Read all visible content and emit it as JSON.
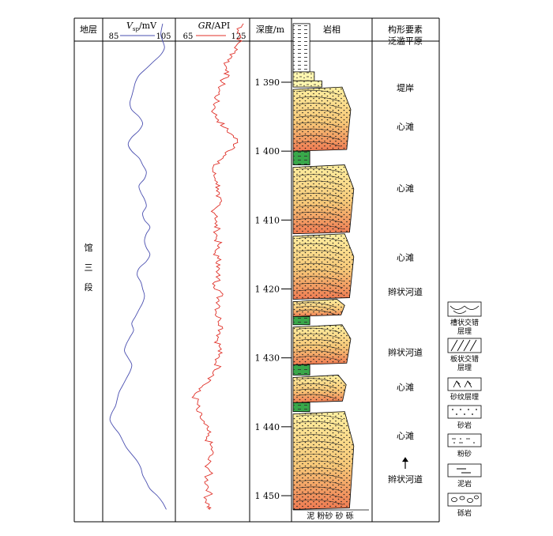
{
  "headers": {
    "stratum": "地层",
    "sp_unit": "/mV",
    "gr_unit": "/API",
    "depth": "深度/m",
    "lithofacies": "岩相",
    "architecture": "构形要素"
  },
  "stratum_name": [
    "馆",
    "三",
    "段"
  ],
  "grain_scale": "泥 粉砂 砂 砾",
  "chart_data": [
    {
      "type": "line",
      "name": "V_sp",
      "unit": "mV",
      "xlim": [
        85,
        105
      ],
      "tick_labels": [
        "85",
        "105"
      ],
      "color": "#4a4fb0",
      "depth": [
        1381.5,
        1383,
        1384,
        1385,
        1386,
        1387,
        1388,
        1389,
        1390,
        1391,
        1392,
        1393,
        1394,
        1395,
        1396,
        1397,
        1398,
        1399,
        1400,
        1401,
        1402,
        1403,
        1404,
        1405,
        1406,
        1407,
        1408,
        1409,
        1410,
        1411,
        1412,
        1413,
        1414,
        1415,
        1416,
        1417,
        1418,
        1419,
        1420,
        1421,
        1422,
        1423,
        1424,
        1425,
        1426,
        1427,
        1428,
        1429,
        1430,
        1431,
        1432,
        1433,
        1434,
        1435,
        1436,
        1437,
        1438,
        1439,
        1440,
        1441,
        1442,
        1443,
        1444,
        1445,
        1446,
        1447,
        1448,
        1449,
        1450,
        1451,
        1452
      ],
      "values": [
        101.5,
        101,
        101.5,
        102,
        101,
        99,
        97,
        95,
        94,
        93.5,
        93,
        92.5,
        93,
        95,
        96,
        95,
        93,
        92,
        93,
        95,
        96,
        97,
        96.5,
        95,
        95.5,
        96.5,
        97,
        96,
        96.5,
        98,
        97,
        96.5,
        97,
        98,
        97,
        95,
        94.5,
        95.5,
        96,
        96.5,
        96,
        95,
        94,
        93,
        93.5,
        92.5,
        91.5,
        91,
        92,
        93,
        92.5,
        91.5,
        90.5,
        89.5,
        89,
        88.5,
        87.5,
        87,
        88,
        89.5,
        90.5,
        91.5,
        93,
        94.5,
        95.5,
        96,
        97,
        98,
        100,
        101.5,
        102.5
      ]
    },
    {
      "type": "line",
      "name": "GR",
      "unit": "API",
      "xlim": [
        65,
        125
      ],
      "tick_labels": [
        "65",
        "125"
      ],
      "color": "#e0322a",
      "depth": [
        1381.5,
        1382.5,
        1383.5,
        1384.5,
        1385.5,
        1386.5,
        1387.5,
        1388.5,
        1389.5,
        1390.5,
        1391.5,
        1392.5,
        1393.5,
        1394.5,
        1395.5,
        1396.5,
        1397.5,
        1398.5,
        1399.5,
        1400.5,
        1401.5,
        1402.5,
        1403.5,
        1404.5,
        1405.5,
        1406.5,
        1407.5,
        1408.5,
        1409.5,
        1410.5,
        1411.5,
        1412.5,
        1413.5,
        1414.5,
        1415.5,
        1416.5,
        1417.5,
        1418.5,
        1419.5,
        1420.5,
        1421.5,
        1422.5,
        1423.5,
        1424.5,
        1425.5,
        1426.5,
        1427.5,
        1428.5,
        1429.5,
        1430.5,
        1431.5,
        1432.5,
        1433.5,
        1434.5,
        1435.5,
        1436.5,
        1437.5,
        1438.5,
        1439.5,
        1440.5,
        1441.5,
        1442.5,
        1443.5,
        1444.5,
        1445.5,
        1446.5,
        1447.5,
        1448.5,
        1449.5,
        1450.5,
        1451.5,
        1452
      ],
      "values": [
        120,
        116,
        118,
        115,
        113,
        110,
        105,
        108,
        104,
        102,
        100,
        98,
        97,
        96,
        100,
        104,
        110,
        115,
        113,
        106,
        99,
        95,
        96,
        99,
        100,
        98,
        101,
        96,
        99,
        97,
        99,
        98,
        100,
        97,
        99,
        101,
        98,
        100,
        97,
        102,
        100,
        101,
        98,
        101,
        103,
        101,
        99,
        101,
        100,
        98,
        100,
        96,
        92,
        84,
        80,
        83,
        82,
        85,
        88,
        91,
        90,
        93,
        95,
        92,
        91,
        93,
        90,
        91,
        93,
        90,
        92,
        93
      ]
    }
  ],
  "depth_axis": {
    "range": [
      1381.5,
      1452
    ],
    "tick_labels": [
      "1 390",
      "1 400",
      "1 410",
      "1 420",
      "1 430",
      "1 440",
      "1 450"
    ],
    "tick_values": [
      1390,
      1400,
      1410,
      1420,
      1430,
      1440,
      1450
    ]
  },
  "architecture_labels": [
    {
      "text": "泛滥平原",
      "depth": 1384
    },
    {
      "text": "堤岸",
      "depth": 1390.8
    },
    {
      "text": "心滩",
      "depth": 1396.4
    },
    {
      "text": "心滩",
      "depth": 1405.4
    },
    {
      "text": "心滩",
      "depth": 1415.4
    },
    {
      "text": "辫状河道",
      "depth": 1420.4
    },
    {
      "text": "辫状河道",
      "depth": 1429.2
    },
    {
      "text": "心滩",
      "depth": 1434.2
    },
    {
      "text": "心滩",
      "depth": 1441.3
    },
    {
      "text": "辫状河道",
      "depth": 1447.6
    }
  ],
  "arrow_depth": [
    1444.4,
    1446.1
  ],
  "lith_column": [
    {
      "top": 1381.5,
      "bottom": 1388.5,
      "kind": "mud",
      "width": 0.22
    },
    {
      "top": 1388.5,
      "bottom": 1389.8,
      "kind": "silt",
      "width": 0.28
    },
    {
      "top": 1389.8,
      "bottom": 1390.7,
      "kind": "silt",
      "width": 0.38
    },
    {
      "top": 1390.7,
      "bottom": 1400.0,
      "kind": "sand",
      "width": 0.76
    },
    {
      "top": 1400.0,
      "bottom": 1402.0,
      "kind": "mud",
      "width": 0.22
    },
    {
      "top": 1402.0,
      "bottom": 1412.0,
      "kind": "sand",
      "width": 0.8
    },
    {
      "top": 1412.0,
      "bottom": 1421.5,
      "kind": "sand",
      "width": 0.8
    },
    {
      "top": 1421.5,
      "bottom": 1424.0,
      "kind": "sand",
      "width": 0.68
    },
    {
      "top": 1424.0,
      "bottom": 1425.2,
      "kind": "mud",
      "width": 0.22
    },
    {
      "top": 1425.2,
      "bottom": 1431.0,
      "kind": "sand",
      "width": 0.76
    },
    {
      "top": 1431.0,
      "bottom": 1432.5,
      "kind": "mud",
      "width": 0.22
    },
    {
      "top": 1432.5,
      "bottom": 1436.5,
      "kind": "sand",
      "width": 0.7
    },
    {
      "top": 1436.5,
      "bottom": 1437.8,
      "kind": "mud",
      "width": 0.22
    },
    {
      "top": 1437.8,
      "bottom": 1452.0,
      "kind": "sand",
      "width": 0.8
    }
  ],
  "legend": [
    {
      "label_lines": [
        "槽状交错",
        "层理"
      ],
      "symbol": "trough-cross"
    },
    {
      "label_lines": [
        "板状交错",
        "层理"
      ],
      "symbol": "tabular-cross"
    },
    {
      "label_lines": [
        "砂纹层理"
      ],
      "symbol": "ripple"
    },
    {
      "label_lines": [
        "砂岩"
      ],
      "symbol": "sandstone"
    },
    {
      "label_lines": [
        "粉砂"
      ],
      "symbol": "siltstone"
    },
    {
      "label_lines": [
        "泥岩"
      ],
      "symbol": "mudstone"
    },
    {
      "label_lines": [
        "砾岩"
      ],
      "symbol": "conglomerate"
    }
  ]
}
